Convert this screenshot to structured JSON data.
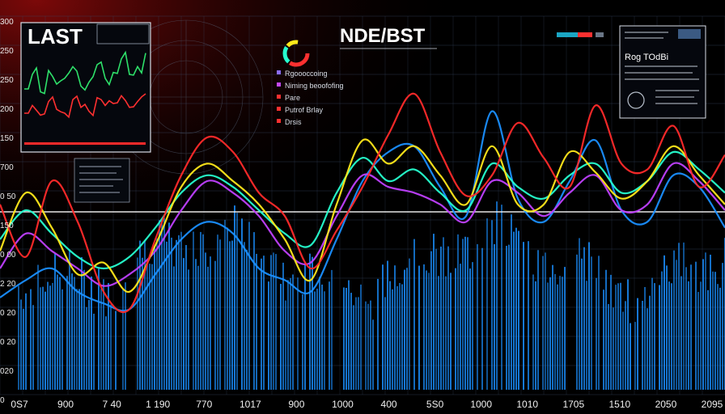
{
  "chart_data": {
    "type": "line",
    "title": "NDE/BST",
    "corner_label": "LAST",
    "y_tick_labels": [
      "300",
      "250",
      "250",
      "200",
      "150",
      "700",
      "0 50",
      "150",
      "0 00",
      "2 20",
      "0 20",
      "0 20",
      "020",
      "0"
    ],
    "x_tick_labels": [
      "0S7",
      "900",
      "7 40",
      "1 190",
      "770",
      "1017",
      "900",
      "1000",
      "400",
      "5S0",
      "1000",
      "1010",
      "1705",
      "1510",
      "2050",
      "2095"
    ],
    "legend": [
      "Rgoooccoing",
      "Niming beoofofing",
      "Pare",
      "Putrof Brlay",
      "Drsis"
    ],
    "legend_colors": [
      "#8a6cff",
      "#c648ff",
      "#ff3030",
      "#ff3030",
      "#ff3030"
    ],
    "info_panel": {
      "title": "Rog TOdBi"
    },
    "series": [
      {
        "color": "#ff2a2a",
        "values": [
          0.52,
          0.34,
          0.6,
          0.46,
          0.22,
          0.16,
          0.4,
          0.62,
          0.75,
          0.7,
          0.56,
          0.48,
          0.3,
          0.43,
          0.58,
          0.76,
          0.9,
          0.7,
          0.55,
          0.62,
          0.8,
          0.68,
          0.58,
          0.86,
          0.66,
          0.64,
          0.79,
          0.58,
          0.69
        ]
      },
      {
        "color": "#ffe81a",
        "values": [
          0.36,
          0.56,
          0.44,
          0.28,
          0.32,
          0.22,
          0.38,
          0.58,
          0.66,
          0.6,
          0.52,
          0.4,
          0.26,
          0.52,
          0.74,
          0.66,
          0.72,
          0.62,
          0.52,
          0.72,
          0.52,
          0.52,
          0.7,
          0.63,
          0.54,
          0.6,
          0.72,
          0.62,
          0.52
        ]
      },
      {
        "color": "#c040ff",
        "values": [
          0.3,
          0.42,
          0.36,
          0.3,
          0.24,
          0.28,
          0.36,
          0.5,
          0.6,
          0.56,
          0.48,
          0.36,
          0.32,
          0.48,
          0.62,
          0.58,
          0.56,
          0.52,
          0.46,
          0.6,
          0.56,
          0.48,
          0.56,
          0.62,
          0.5,
          0.52,
          0.66,
          0.6,
          0.5
        ]
      },
      {
        "color": "#26ffd0",
        "values": [
          0.4,
          0.5,
          0.42,
          0.34,
          0.3,
          0.34,
          0.44,
          0.56,
          0.62,
          0.58,
          0.5,
          0.42,
          0.38,
          0.56,
          0.68,
          0.6,
          0.64,
          0.56,
          0.5,
          0.66,
          0.58,
          0.54,
          0.62,
          0.66,
          0.56,
          0.6,
          0.7,
          0.64,
          0.56
        ]
      },
      {
        "color": "#1a8fff",
        "values": [
          0.2,
          0.26,
          0.3,
          0.22,
          0.18,
          0.16,
          0.28,
          0.4,
          0.46,
          0.42,
          0.3,
          0.26,
          0.22,
          0.4,
          0.6,
          0.7,
          0.72,
          0.58,
          0.48,
          0.84,
          0.54,
          0.46,
          0.6,
          0.74,
          0.5,
          0.46,
          0.62,
          0.58,
          0.44
        ]
      }
    ]
  },
  "inset_chart": {
    "series": [
      {
        "color": "#2ee06a",
        "values": [
          0.55,
          0.7,
          0.52,
          0.74,
          0.6,
          0.66,
          0.78,
          0.58,
          0.62,
          0.8,
          0.66,
          0.72,
          0.86,
          0.7,
          0.78,
          0.92
        ]
      },
      {
        "color": "#ff3030",
        "values": [
          0.3,
          0.38,
          0.28,
          0.42,
          0.34,
          0.3,
          0.44,
          0.36,
          0.32,
          0.46,
          0.38,
          0.4,
          0.48,
          0.36,
          0.42,
          0.5
        ]
      }
    ]
  },
  "colors": {
    "background": "#000000",
    "grid": "#3a4a66",
    "accent_red": "#ff2a2a",
    "accent_yellow": "#ffe81a",
    "accent_cyan": "#26ffd0",
    "accent_blue": "#1a8fff",
    "baseline": "#ffffff"
  }
}
